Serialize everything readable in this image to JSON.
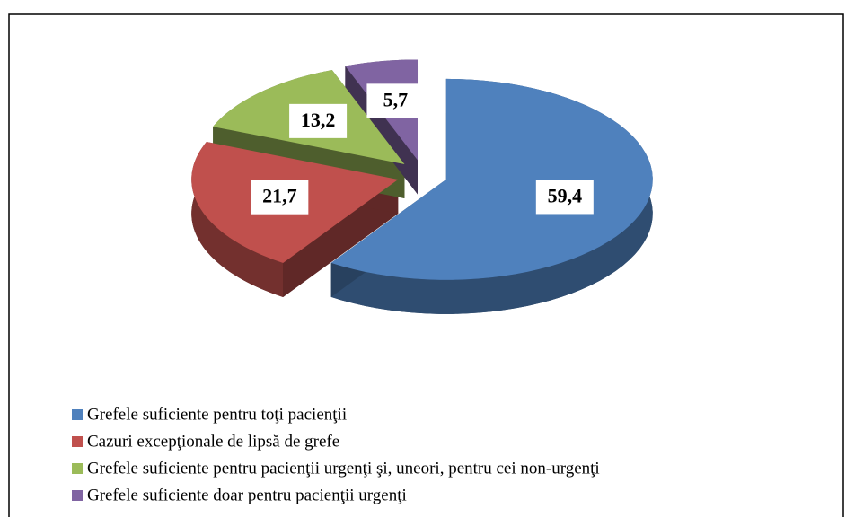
{
  "chart_data": {
    "type": "pie",
    "categories": [
      "Grefele suficiente pentru toţi pacienţii",
      "Cazuri excepţionale de lipsă de grefe",
      "Grefele suficiente pentru pacienţii urgenţi şi, uneori, pentru cei non-urgenţi",
      "Grefele suficiente doar pentru pacienţii urgenţi"
    ],
    "values": [
      59.4,
      21.7,
      13.2,
      5.7
    ],
    "value_labels": [
      "59,4",
      "21,7",
      "13,2",
      "5,7"
    ],
    "colors": [
      "#4f81bd",
      "#c0504d",
      "#9bbb59",
      "#8064a2"
    ],
    "legend": "bottom-left"
  }
}
